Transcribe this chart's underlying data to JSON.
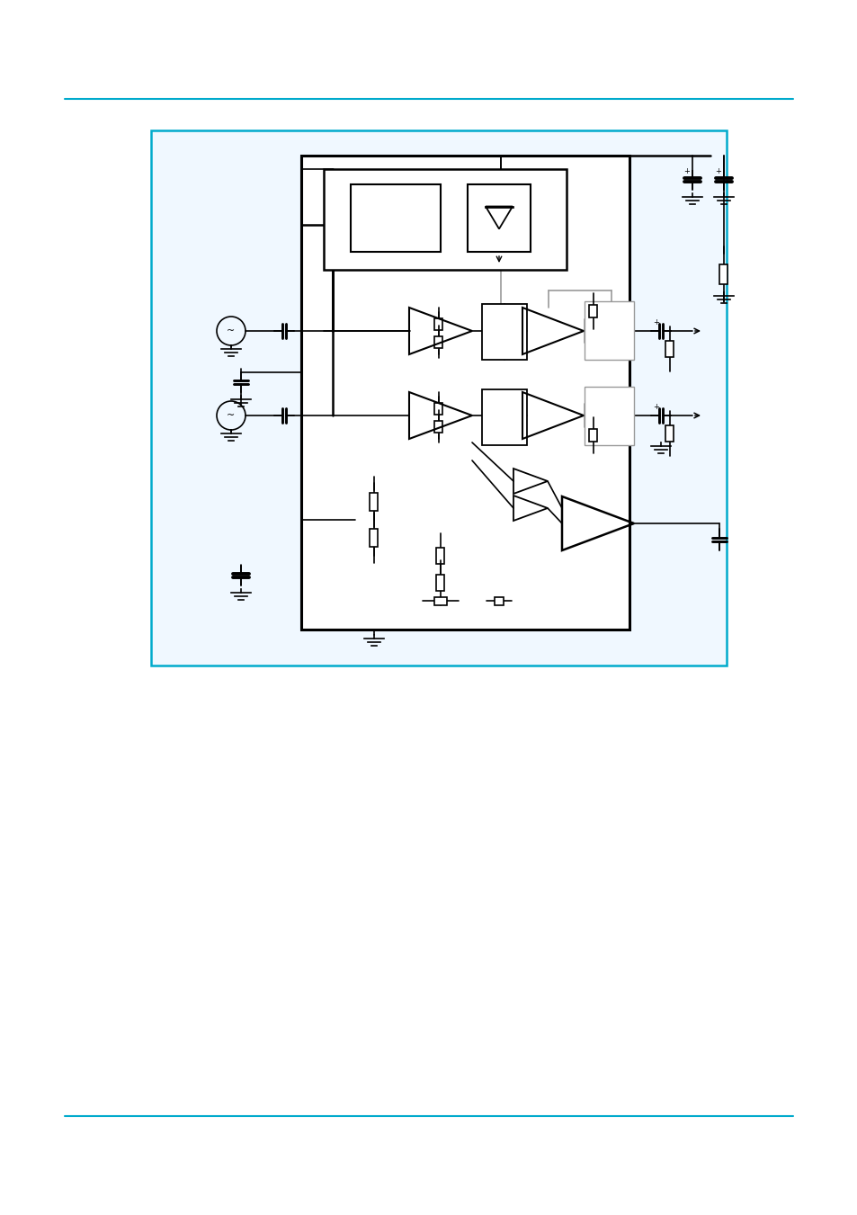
{
  "page_bg": "#ffffff",
  "border_color": "#00AACC",
  "line_color": "#000000",
  "gray_color": "#999999",
  "box_bg": "#f5fbff",
  "figsize": [
    9.54,
    13.51
  ],
  "dpi": 100
}
